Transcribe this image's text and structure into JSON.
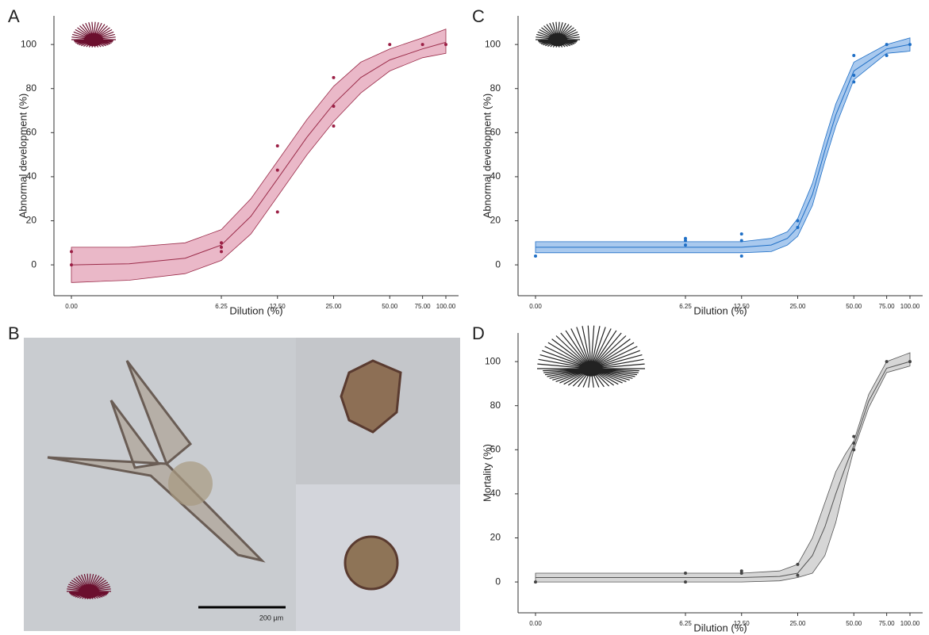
{
  "chart_data": [
    {
      "type": "dose-response",
      "label": "A",
      "ylabel": "Abnormal development (%)",
      "xlabel": "Dilution (%)",
      "xscale": "log",
      "xlim": [
        0,
        100
      ],
      "ylim": [
        -14,
        113
      ],
      "xticks": [
        {
          "value": 0,
          "label": "0.00"
        },
        {
          "value": 6.25,
          "label": "6.25"
        },
        {
          "value": 12.5,
          "label": "12.50"
        },
        {
          "value": 25,
          "label": "25.00"
        },
        {
          "value": 50,
          "label": "50.00"
        },
        {
          "value": 75,
          "label": "75.00"
        },
        {
          "value": 100,
          "label": "100.00"
        }
      ],
      "yticks": [
        0,
        20,
        40,
        60,
        80,
        100
      ],
      "icon_color": "#6b0f2e",
      "points": {
        "color": "#9b1f45",
        "x": [
          0,
          0,
          6.25,
          6.25,
          6.25,
          12.5,
          12.5,
          12.5,
          25,
          25,
          25,
          50,
          75,
          100
        ],
        "y": [
          6,
          0,
          10,
          8,
          6,
          54,
          43,
          24,
          85,
          72,
          63,
          100,
          100,
          100
        ]
      },
      "fit": {
        "color": "#9b2c4a",
        "band_color": "#eab8c8",
        "x": [
          0,
          1,
          2,
          4,
          6.25,
          9,
          12.5,
          18,
          25,
          35,
          50,
          75,
          100
        ],
        "y": [
          0,
          0,
          0.5,
          3,
          9,
          22,
          39,
          58,
          73,
          85,
          93,
          98,
          101
        ],
        "lower": [
          -8,
          -8,
          -7,
          -4,
          2,
          14,
          31,
          50,
          65,
          78,
          88,
          94,
          96
        ],
        "upper": [
          8,
          8,
          8,
          10,
          16,
          30,
          47,
          66,
          81,
          92,
          98,
          103,
          107
        ]
      }
    },
    {
      "type": "dose-response",
      "label": "C",
      "ylabel": "Abnormal development (%)",
      "xlabel": "Dilution (%)",
      "xscale": "log",
      "xlim": [
        0,
        100
      ],
      "ylim": [
        -14,
        113
      ],
      "xticks": [
        {
          "value": 0,
          "label": "0.00"
        },
        {
          "value": 6.25,
          "label": "6.25"
        },
        {
          "value": 12.5,
          "label": "12.50"
        },
        {
          "value": 25,
          "label": "25.00"
        },
        {
          "value": 50,
          "label": "50.00"
        },
        {
          "value": 75,
          "label": "75.00"
        },
        {
          "value": 100,
          "label": "100.00"
        }
      ],
      "yticks": [
        0,
        20,
        40,
        60,
        80,
        100
      ],
      "icon_color": "#222222",
      "points": {
        "color": "#1f6fc6",
        "x": [
          0,
          6.25,
          6.25,
          6.25,
          12.5,
          12.5,
          12.5,
          25,
          25,
          50,
          50,
          50,
          75,
          75,
          100
        ],
        "y": [
          4,
          12,
          11,
          9,
          14,
          11,
          4,
          20,
          17,
          95,
          86,
          83,
          100,
          95,
          100
        ]
      },
      "fit": {
        "color": "#1f6fc6",
        "band_color": "#a9c9ee",
        "x": [
          0,
          1,
          6.25,
          12.5,
          18,
          22,
          25,
          30,
          35,
          40,
          50,
          75,
          100
        ],
        "y": [
          8,
          8,
          8,
          8,
          9,
          12,
          17,
          32,
          52,
          68,
          88,
          98,
          100
        ],
        "lower": [
          5.5,
          5.5,
          5.5,
          5.5,
          6,
          9,
          13,
          27,
          47,
          63,
          84,
          96,
          97
        ],
        "upper": [
          10.5,
          10.5,
          10.5,
          10.5,
          12,
          15,
          21,
          37,
          57,
          73,
          92,
          100,
          103
        ]
      }
    },
    {
      "type": "dose-response",
      "label": "D",
      "ylabel": "Mortality (%)",
      "xlabel": "Dilution (%)",
      "xscale": "log",
      "xlim": [
        0,
        100
      ],
      "ylim": [
        -14,
        113
      ],
      "xticks": [
        {
          "value": 0,
          "label": "0.00"
        },
        {
          "value": 6.25,
          "label": "6.25"
        },
        {
          "value": 12.5,
          "label": "12.50"
        },
        {
          "value": 25,
          "label": "25.00"
        },
        {
          "value": 50,
          "label": "50.00"
        },
        {
          "value": 75,
          "label": "75.00"
        },
        {
          "value": 100,
          "label": "100.00"
        }
      ],
      "yticks": [
        0,
        20,
        40,
        60,
        80,
        100
      ],
      "icon_color": "#222222",
      "points": {
        "color": "#444444",
        "x": [
          0,
          6.25,
          6.25,
          12.5,
          12.5,
          25,
          25,
          50,
          50,
          50,
          75,
          100
        ],
        "y": [
          0,
          4,
          0,
          5,
          4,
          8,
          3,
          66,
          63,
          60,
          100,
          100
        ]
      },
      "fit": {
        "color": "#555555",
        "band_color": "#d6d6d6",
        "x": [
          0,
          1,
          6.25,
          12.5,
          20,
          25,
          30,
          35,
          40,
          45,
          50,
          60,
          75,
          100
        ],
        "y": [
          2,
          2,
          2,
          2,
          2.5,
          4,
          12,
          25,
          40,
          52,
          62,
          82,
          97,
          100
        ],
        "lower": [
          0,
          0,
          0,
          0,
          0.5,
          2,
          4,
          12,
          27,
          45,
          60,
          79,
          95,
          98
        ],
        "upper": [
          4,
          4,
          4,
          4,
          5,
          8,
          20,
          36,
          50,
          58,
          64,
          85,
          100,
          104
        ]
      }
    }
  ],
  "panel_b": {
    "label": "B",
    "scale_bar": "200 µm"
  }
}
